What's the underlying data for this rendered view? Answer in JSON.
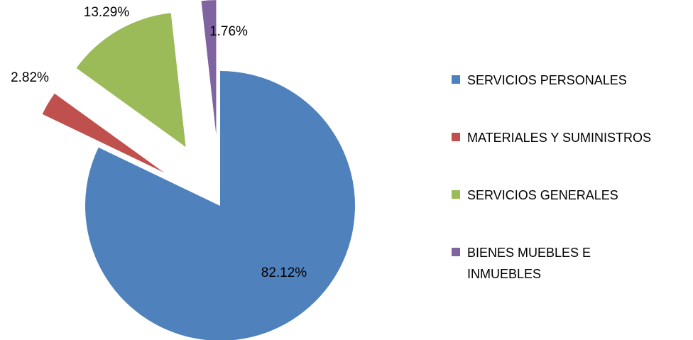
{
  "chart_data": {
    "type": "pie",
    "categories": [
      "SERVICIOS PERSONALES",
      "MATERIALES Y SUMINISTROS",
      "SERVICIOS GENERALES",
      "BIENES MUEBLES E INMUEBLES"
    ],
    "values": [
      82.12,
      2.82,
      13.29,
      1.76
    ],
    "value_labels": [
      "82.12%",
      "2.82%",
      "13.29%",
      "1.76%"
    ],
    "colors": [
      "#4f81bd",
      "#c0504d",
      "#9bbb59",
      "#8064a2"
    ],
    "legend": "right"
  }
}
